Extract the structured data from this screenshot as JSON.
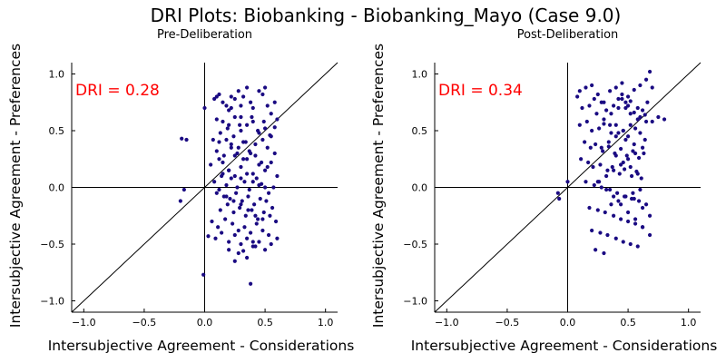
{
  "title": "DRI Plots: Biobanking - Biobanking_Mayo (Case 9.0)",
  "colors": {
    "point": "#1a0a82",
    "dri": "#ff0000",
    "axis": "#000000"
  },
  "chart_data": [
    {
      "type": "scatter",
      "title": "Pre-Deliberation",
      "xlabel": "Intersubjective Agreement - Considerations",
      "ylabel": "Intersubjective Agreement - Preferences",
      "xlim": [
        -1.1,
        1.1
      ],
      "ylim": [
        -1.1,
        1.1
      ],
      "xticks": [
        -1.0,
        -0.5,
        0.0,
        0.5,
        1.0
      ],
      "yticks": [
        -1.0,
        -0.5,
        0.0,
        0.5,
        1.0
      ],
      "xtick_labels": [
        "−1.0",
        "−0.5",
        "0.0",
        "0.5",
        "1.0"
      ],
      "ytick_labels": [
        "−1.0",
        "−0.5",
        "0.0",
        "0.5",
        "1.0"
      ],
      "grid": false,
      "reference_lines": [
        "x=0",
        "y=0",
        "y=x"
      ],
      "annotation": "DRI = 0.28",
      "x": [
        -0.19,
        -0.15,
        -0.17,
        -0.2,
        -0.01,
        0.03,
        0.0,
        0.08,
        0.1,
        0.12,
        0.15,
        0.18,
        0.2,
        0.22,
        0.25,
        0.28,
        0.3,
        0.32,
        0.35,
        0.38,
        0.4,
        0.45,
        0.48,
        0.5,
        0.52,
        0.55,
        0.58,
        0.6,
        0.1,
        0.15,
        0.2,
        0.25,
        0.3,
        0.35,
        0.4,
        0.45,
        0.5,
        0.55,
        0.12,
        0.18,
        0.22,
        0.28,
        0.32,
        0.38,
        0.42,
        0.48,
        0.52,
        0.58,
        0.05,
        0.12,
        0.15,
        0.2,
        0.25,
        0.3,
        0.35,
        0.4,
        0.45,
        0.5,
        0.55,
        0.6,
        0.08,
        0.14,
        0.18,
        0.22,
        0.27,
        0.33,
        0.37,
        0.43,
        0.47,
        0.53,
        0.57,
        0.1,
        0.16,
        0.21,
        0.26,
        0.31,
        0.36,
        0.41,
        0.46,
        0.51,
        0.56,
        0.13,
        0.19,
        0.24,
        0.29,
        0.34,
        0.39,
        0.44,
        0.49,
        0.54,
        0.59,
        0.06,
        0.11,
        0.17,
        0.23,
        0.28,
        0.33,
        0.38,
        0.43,
        0.48,
        0.53,
        0.09,
        0.14,
        0.2,
        0.25,
        0.3,
        0.35,
        0.4,
        0.45,
        0.5,
        0.55,
        0.6,
        0.07,
        0.13,
        0.19,
        0.24,
        0.29,
        0.34,
        0.39,
        0.44,
        0.49,
        0.54,
        0.58,
        0.1,
        0.16,
        0.22,
        0.27,
        0.32,
        0.37,
        0.42,
        0.47,
        0.52,
        0.15,
        0.2,
        0.25,
        0.3,
        0.35,
        0.4,
        0.45,
        0.5,
        0.12,
        0.18,
        0.24,
        0.3,
        0.36,
        0.42,
        0.48,
        0.2,
        0.28,
        0.35,
        0.42,
        0.25,
        0.32,
        0.4,
        0.38,
        0.22,
        0.3
      ],
      "y": [
        0.43,
        0.42,
        -0.02,
        -0.12,
        -0.77,
        -0.43,
        0.7,
        0.78,
        0.8,
        0.82,
        0.75,
        0.72,
        0.68,
        0.8,
        0.78,
        0.85,
        0.72,
        0.8,
        0.88,
        0.75,
        0.7,
        0.85,
        0.82,
        0.88,
        0.72,
        0.65,
        0.75,
        0.6,
        0.6,
        0.58,
        0.55,
        0.62,
        0.5,
        0.55,
        0.58,
        0.48,
        0.52,
        0.45,
        0.4,
        0.42,
        0.38,
        0.35,
        0.4,
        0.3,
        0.38,
        0.42,
        0.35,
        0.3,
        0.2,
        0.25,
        0.22,
        0.15,
        0.28,
        0.18,
        0.25,
        0.12,
        0.2,
        0.15,
        0.22,
        0.1,
        0.05,
        0.1,
        0.02,
        0.08,
        0.0,
        0.05,
        -0.02,
        0.08,
        0.03,
        -0.05,
        0.0,
        -0.05,
        -0.08,
        -0.1,
        -0.05,
        -0.12,
        -0.08,
        -0.15,
        -0.1,
        -0.12,
        -0.18,
        -0.2,
        -0.15,
        -0.22,
        -0.18,
        -0.25,
        -0.2,
        -0.28,
        -0.22,
        -0.25,
        -0.3,
        -0.3,
        -0.35,
        -0.28,
        -0.32,
        -0.38,
        -0.35,
        -0.4,
        -0.32,
        -0.38,
        -0.42,
        -0.45,
        -0.4,
        -0.48,
        -0.42,
        -0.5,
        -0.45,
        -0.52,
        -0.48,
        -0.55,
        -0.5,
        -0.45,
        0.42,
        0.48,
        0.52,
        0.45,
        0.55,
        0.4,
        0.62,
        0.5,
        0.58,
        0.46,
        0.53,
        0.32,
        0.28,
        0.35,
        0.3,
        0.25,
        0.32,
        0.28,
        0.22,
        0.18,
        0.12,
        0.15,
        0.1,
        0.08,
        0.12,
        0.05,
        0.02,
        0.0,
        -0.02,
        -0.08,
        -0.12,
        -0.15,
        -0.2,
        -0.25,
        -0.28,
        -0.55,
        -0.58,
        -0.62,
        -0.52,
        -0.65,
        -0.56,
        -0.48,
        -0.85,
        0.7,
        0.62
      ],
      "series": [
        {
          "dri_label": "DRI = 0.28"
        }
      ]
    },
    {
      "type": "scatter",
      "title": "Post-Deliberation",
      "xlabel": "Intersubjective Agreement - Considerations",
      "ylabel": "Intersubjective Agreement - Preferences",
      "xlim": [
        -1.1,
        1.1
      ],
      "ylim": [
        -1.1,
        1.1
      ],
      "xticks": [
        -1.0,
        -0.5,
        0.0,
        0.5,
        1.0
      ],
      "yticks": [
        -1.0,
        -0.5,
        0.0,
        0.5,
        1.0
      ],
      "xtick_labels": [
        "−1.0",
        "−0.5",
        "0.0",
        "0.5",
        "1.0"
      ],
      "ytick_labels": [
        "−1.0",
        "−0.5",
        "0.0",
        "0.5",
        "1.0"
      ],
      "grid": false,
      "reference_lines": [
        "x=0",
        "y=0",
        "y=x"
      ],
      "annotation": "DRI = 0.34",
      "x": [
        -0.08,
        -0.07,
        0.0,
        0.1,
        0.08,
        0.15,
        0.2,
        0.22,
        0.25,
        0.3,
        0.35,
        0.4,
        0.45,
        0.5,
        0.55,
        0.6,
        0.65,
        0.68,
        0.7,
        0.75,
        0.8,
        0.12,
        0.18,
        0.24,
        0.28,
        0.32,
        0.38,
        0.42,
        0.48,
        0.52,
        0.58,
        0.62,
        0.66,
        0.1,
        0.16,
        0.2,
        0.26,
        0.3,
        0.36,
        0.4,
        0.46,
        0.5,
        0.56,
        0.6,
        0.64,
        0.14,
        0.19,
        0.23,
        0.29,
        0.34,
        0.39,
        0.44,
        0.49,
        0.54,
        0.59,
        0.63,
        0.11,
        0.17,
        0.21,
        0.27,
        0.33,
        0.37,
        0.43,
        0.47,
        0.53,
        0.57,
        0.61,
        0.15,
        0.22,
        0.28,
        0.35,
        0.41,
        0.47,
        0.53,
        0.59,
        0.65,
        0.18,
        0.25,
        0.31,
        0.38,
        0.44,
        0.5,
        0.56,
        0.62,
        0.2,
        0.27,
        0.33,
        0.4,
        0.46,
        0.52,
        0.58,
        0.23,
        0.3,
        0.36,
        0.42,
        0.48,
        0.54,
        0.6,
        0.26,
        0.32,
        0.38,
        0.44,
        0.5,
        0.56,
        0.28,
        0.34,
        0.4,
        0.46,
        0.52,
        0.3,
        0.36,
        0.42,
        0.48,
        0.45,
        0.5,
        0.55,
        0.6,
        0.65,
        0.35,
        0.42,
        0.48,
        0.55,
        0.62,
        0.4,
        0.46,
        0.52,
        0.58,
        0.25,
        0.32,
        0.38,
        0.44,
        0.5,
        0.56,
        0.62,
        0.68,
        0.45,
        0.52,
        0.58,
        0.64,
        0.7,
        0.55,
        0.62,
        0.68
      ],
      "y": [
        -0.05,
        -0.1,
        0.05,
        0.85,
        0.8,
        0.88,
        0.9,
        0.78,
        0.82,
        0.75,
        0.85,
        0.88,
        0.92,
        0.8,
        0.86,
        0.9,
        0.95,
        1.02,
        0.88,
        0.62,
        0.6,
        0.7,
        0.72,
        0.65,
        0.75,
        0.68,
        0.72,
        0.78,
        0.7,
        0.65,
        0.6,
        0.68,
        0.75,
        0.55,
        0.58,
        0.5,
        0.52,
        0.56,
        0.48,
        0.55,
        0.5,
        0.45,
        0.52,
        0.48,
        0.42,
        0.4,
        0.35,
        0.38,
        0.32,
        0.36,
        0.3,
        0.34,
        0.28,
        0.32,
        0.26,
        0.3,
        0.25,
        0.22,
        0.18,
        0.2,
        0.15,
        0.18,
        0.12,
        0.16,
        0.1,
        0.14,
        0.08,
        0.05,
        0.02,
        0.0,
        -0.02,
        -0.05,
        -0.08,
        -0.1,
        -0.12,
        -0.15,
        -0.18,
        -0.2,
        -0.22,
        -0.25,
        -0.28,
        -0.3,
        -0.32,
        -0.35,
        -0.38,
        -0.4,
        -0.42,
        -0.45,
        -0.48,
        -0.5,
        -0.52,
        -0.55,
        -0.58,
        -0.15,
        -0.12,
        -0.08,
        -0.05,
        -0.02,
        0.05,
        0.1,
        0.15,
        0.2,
        0.25,
        0.3,
        0.35,
        0.4,
        0.45,
        0.5,
        0.55,
        0.6,
        0.65,
        0.7,
        0.75,
        0.78,
        0.72,
        0.66,
        0.62,
        0.58,
        0.55,
        0.48,
        0.42,
        0.38,
        0.35,
        0.28,
        0.22,
        0.18,
        0.12,
        0.05,
        -0.02,
        -0.08,
        -0.15,
        -0.22,
        -0.28,
        -0.35,
        -0.42,
        0.82,
        0.76,
        0.7,
        0.64,
        0.58,
        -0.1,
        -0.18,
        -0.25
      ]
    }
  ]
}
